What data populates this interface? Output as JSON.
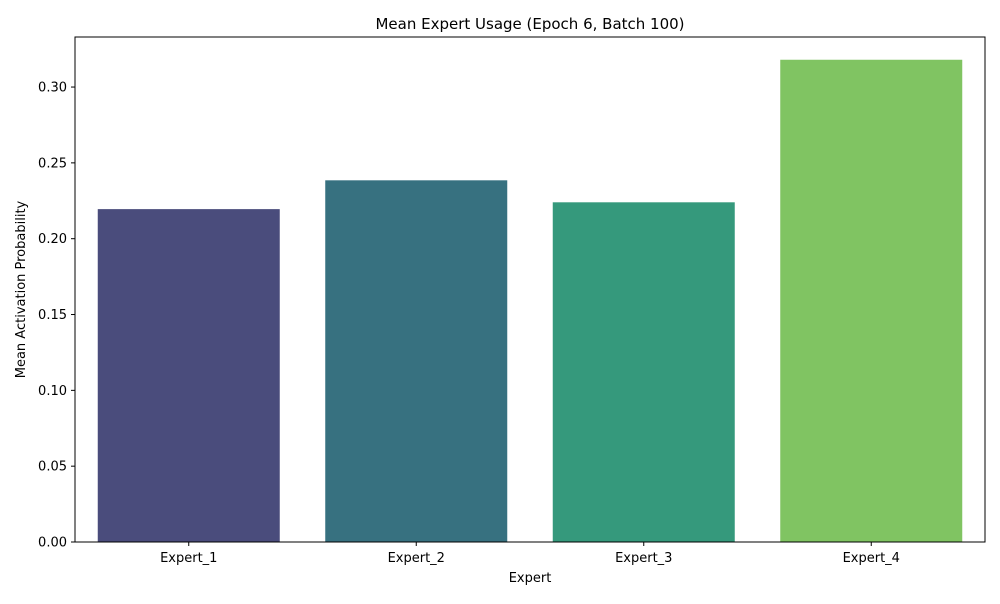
{
  "chart_data": {
    "type": "bar",
    "title": "Mean Expert Usage (Epoch 6, Batch 100)",
    "xlabel": "Expert",
    "ylabel": "Mean Activation Probability",
    "categories": [
      "Expert_1",
      "Expert_2",
      "Expert_3",
      "Expert_4"
    ],
    "values": [
      0.2195,
      0.2385,
      0.224,
      0.318
    ],
    "colors": [
      "#4a4c7c",
      "#377180",
      "#35997c",
      "#80c462"
    ],
    "ylim": [
      0,
      0.333
    ],
    "yticks": [
      0.0,
      0.05,
      0.1,
      0.15,
      0.2,
      0.25,
      0.3
    ],
    "ytick_labels": [
      "0.00",
      "0.05",
      "0.10",
      "0.15",
      "0.20",
      "0.25",
      "0.30"
    ],
    "grid": false,
    "legend": "none"
  }
}
